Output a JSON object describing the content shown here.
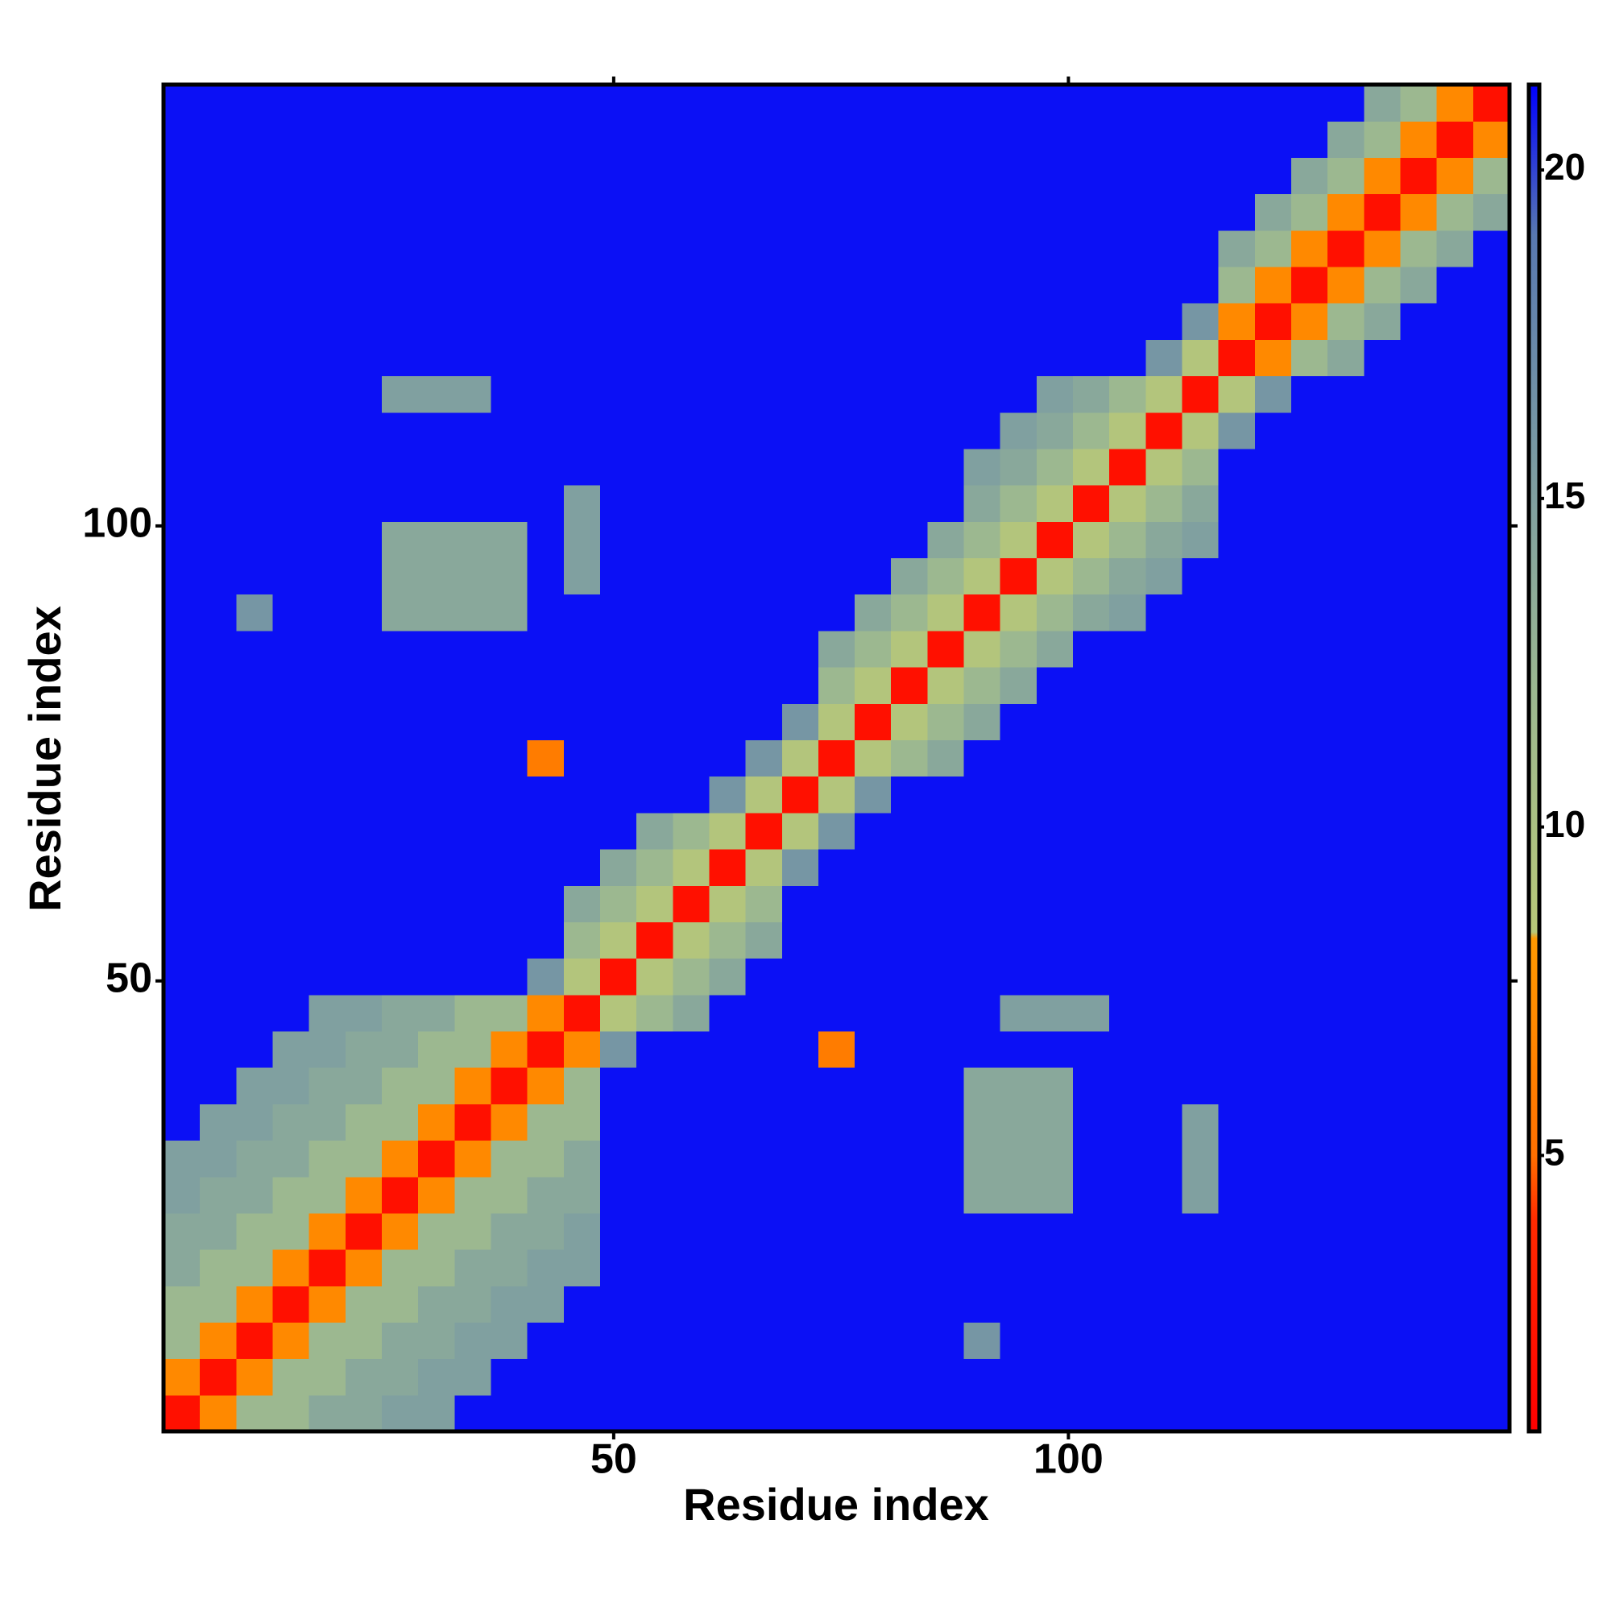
{
  "chart_data": {
    "type": "heatmap",
    "xlabel": "Residue index",
    "ylabel": "Residue index",
    "x": [
      2.5,
      6.5,
      10.5,
      14.5,
      18.5,
      22.5,
      26.5,
      30.5,
      34.5,
      38.5,
      42.5,
      46.5,
      50.5,
      54.5,
      58.5,
      62.5,
      66.5,
      70.5,
      74.5,
      78.5,
      82.5,
      86.5,
      90.5,
      94.5,
      98.5,
      102.5,
      106.5,
      110.5,
      114.5,
      118.5,
      122.5,
      126.5,
      130.5,
      134.5,
      138.5,
      142.5,
      146.5
    ],
    "y": [
      2.5,
      6.5,
      10.5,
      14.5,
      18.5,
      22.5,
      26.5,
      30.5,
      34.5,
      38.5,
      42.5,
      46.5,
      50.5,
      54.5,
      58.5,
      62.5,
      66.5,
      70.5,
      74.5,
      78.5,
      82.5,
      86.5,
      90.5,
      94.5,
      98.5,
      102.5,
      106.5,
      110.5,
      114.5,
      118.5,
      122.5,
      126.5,
      130.5,
      134.5,
      138.5,
      142.5,
      146.5
    ],
    "z": [
      [
        2,
        7,
        12,
        12,
        14,
        14,
        15,
        15,
        21,
        21,
        21,
        21,
        21,
        21,
        21,
        21,
        21,
        21,
        21,
        21,
        21,
        21,
        21,
        21,
        21,
        21,
        21,
        21,
        21,
        21,
        21,
        21,
        21,
        21,
        21,
        21,
        21
      ],
      [
        7,
        2,
        7,
        12,
        12,
        14,
        14,
        15,
        15,
        21,
        21,
        21,
        21,
        21,
        21,
        21,
        21,
        21,
        21,
        21,
        21,
        21,
        21,
        21,
        21,
        21,
        21,
        21,
        21,
        21,
        21,
        21,
        21,
        21,
        21,
        21,
        21
      ],
      [
        12,
        7,
        2,
        7,
        12,
        12,
        14,
        14,
        15,
        15,
        21,
        21,
        21,
        21,
        21,
        21,
        21,
        21,
        21,
        21,
        21,
        21,
        16,
        21,
        21,
        21,
        21,
        21,
        21,
        21,
        21,
        21,
        21,
        21,
        21,
        21,
        21
      ],
      [
        12,
        12,
        7,
        2,
        7,
        12,
        12,
        14,
        14,
        15,
        15,
        21,
        21,
        21,
        21,
        21,
        21,
        21,
        21,
        21,
        21,
        21,
        21,
        21,
        21,
        21,
        21,
        21,
        21,
        21,
        21,
        21,
        21,
        21,
        21,
        21,
        21
      ],
      [
        14,
        12,
        12,
        7,
        2,
        7,
        12,
        12,
        14,
        14,
        15,
        15,
        21,
        21,
        21,
        21,
        21,
        21,
        21,
        21,
        21,
        21,
        21,
        21,
        21,
        21,
        21,
        21,
        21,
        21,
        21,
        21,
        21,
        21,
        21,
        21,
        21
      ],
      [
        14,
        14,
        12,
        12,
        7,
        2,
        7,
        12,
        12,
        14,
        14,
        15,
        21,
        21,
        21,
        21,
        21,
        21,
        21,
        21,
        21,
        21,
        21,
        21,
        21,
        21,
        21,
        21,
        21,
        21,
        21,
        21,
        21,
        21,
        21,
        21,
        21
      ],
      [
        15,
        14,
        14,
        12,
        12,
        7,
        2,
        7,
        12,
        12,
        14,
        14,
        21,
        21,
        21,
        21,
        21,
        21,
        21,
        21,
        21,
        21,
        14,
        14,
        14,
        21,
        21,
        21,
        15,
        21,
        21,
        21,
        21,
        21,
        21,
        21,
        21
      ],
      [
        15,
        15,
        14,
        14,
        12,
        12,
        7,
        2,
        7,
        12,
        12,
        14,
        21,
        21,
        21,
        21,
        21,
        21,
        21,
        21,
        21,
        21,
        14,
        14,
        14,
        21,
        21,
        21,
        15,
        21,
        21,
        21,
        21,
        21,
        21,
        21,
        21
      ],
      [
        21,
        15,
        15,
        14,
        14,
        12,
        12,
        7,
        2,
        7,
        12,
        12,
        21,
        21,
        21,
        21,
        21,
        21,
        21,
        21,
        21,
        21,
        14,
        14,
        14,
        21,
        21,
        21,
        15,
        21,
        21,
        21,
        21,
        21,
        21,
        21,
        21
      ],
      [
        21,
        21,
        15,
        15,
        14,
        14,
        12,
        12,
        7,
        2,
        7,
        12,
        21,
        21,
        21,
        21,
        21,
        21,
        21,
        21,
        21,
        21,
        14,
        14,
        14,
        21,
        21,
        21,
        21,
        21,
        21,
        21,
        21,
        21,
        21,
        21,
        21
      ],
      [
        21,
        21,
        21,
        15,
        15,
        14,
        14,
        12,
        12,
        7,
        2,
        7,
        16,
        21,
        21,
        21,
        21,
        21,
        6,
        21,
        21,
        21,
        21,
        21,
        21,
        21,
        21,
        21,
        21,
        21,
        21,
        21,
        21,
        21,
        21,
        21,
        21
      ],
      [
        21,
        21,
        21,
        21,
        15,
        15,
        14,
        14,
        12,
        12,
        7,
        2,
        9,
        12,
        14,
        21,
        21,
        21,
        21,
        21,
        21,
        21,
        21,
        15,
        15,
        15,
        21,
        21,
        21,
        21,
        21,
        21,
        21,
        21,
        21,
        21,
        21
      ],
      [
        21,
        21,
        21,
        21,
        21,
        21,
        21,
        21,
        21,
        21,
        16,
        9,
        2,
        9,
        12,
        14,
        21,
        21,
        21,
        21,
        21,
        21,
        21,
        21,
        21,
        21,
        21,
        21,
        21,
        21,
        21,
        21,
        21,
        21,
        21,
        21,
        21
      ],
      [
        21,
        21,
        21,
        21,
        21,
        21,
        21,
        21,
        21,
        21,
        21,
        12,
        9,
        2,
        9,
        12,
        14,
        21,
        21,
        21,
        21,
        21,
        21,
        21,
        21,
        21,
        21,
        21,
        21,
        21,
        21,
        21,
        21,
        21,
        21,
        21,
        21
      ],
      [
        21,
        21,
        21,
        21,
        21,
        21,
        21,
        21,
        21,
        21,
        21,
        14,
        12,
        9,
        2,
        9,
        12,
        21,
        21,
        21,
        21,
        21,
        21,
        21,
        21,
        21,
        21,
        21,
        21,
        21,
        21,
        21,
        21,
        21,
        21,
        21,
        21
      ],
      [
        21,
        21,
        21,
        21,
        21,
        21,
        21,
        21,
        21,
        21,
        21,
        21,
        14,
        12,
        9,
        2,
        9,
        16,
        21,
        21,
        21,
        21,
        21,
        21,
        21,
        21,
        21,
        21,
        21,
        21,
        21,
        21,
        21,
        21,
        21,
        21,
        21
      ],
      [
        21,
        21,
        21,
        21,
        21,
        21,
        21,
        21,
        21,
        21,
        21,
        21,
        21,
        14,
        12,
        9,
        2,
        9,
        16,
        21,
        21,
        21,
        21,
        21,
        21,
        21,
        21,
        21,
        21,
        21,
        21,
        21,
        21,
        21,
        21,
        21,
        21
      ],
      [
        21,
        21,
        21,
        21,
        21,
        21,
        21,
        21,
        21,
        21,
        21,
        21,
        21,
        21,
        21,
        16,
        9,
        2,
        9,
        16,
        21,
        21,
        21,
        21,
        21,
        21,
        21,
        21,
        21,
        21,
        21,
        21,
        21,
        21,
        21,
        21,
        21
      ],
      [
        21,
        21,
        21,
        21,
        21,
        21,
        21,
        21,
        21,
        21,
        6,
        21,
        21,
        21,
        21,
        21,
        16,
        9,
        2,
        9,
        12,
        14,
        21,
        21,
        21,
        21,
        21,
        21,
        21,
        21,
        21,
        21,
        21,
        21,
        21,
        21,
        21
      ],
      [
        21,
        21,
        21,
        21,
        21,
        21,
        21,
        21,
        21,
        21,
        21,
        21,
        21,
        21,
        21,
        21,
        21,
        16,
        9,
        2,
        9,
        12,
        14,
        21,
        21,
        21,
        21,
        21,
        21,
        21,
        21,
        21,
        21,
        21,
        21,
        21,
        21
      ],
      [
        21,
        21,
        21,
        21,
        21,
        21,
        21,
        21,
        21,
        21,
        21,
        21,
        21,
        21,
        21,
        21,
        21,
        21,
        12,
        9,
        2,
        9,
        12,
        14,
        21,
        21,
        21,
        21,
        21,
        21,
        21,
        21,
        21,
        21,
        21,
        21,
        21
      ],
      [
        21,
        21,
        21,
        21,
        21,
        21,
        21,
        21,
        21,
        21,
        21,
        21,
        21,
        21,
        21,
        21,
        21,
        21,
        14,
        12,
        9,
        2,
        9,
        12,
        14,
        21,
        21,
        21,
        21,
        21,
        21,
        21,
        21,
        21,
        21,
        21,
        21
      ],
      [
        21,
        21,
        16,
        21,
        21,
        21,
        14,
        14,
        14,
        14,
        21,
        21,
        21,
        21,
        21,
        21,
        21,
        21,
        21,
        14,
        12,
        9,
        2,
        9,
        12,
        14,
        15,
        21,
        21,
        21,
        21,
        21,
        21,
        21,
        21,
        21,
        21
      ],
      [
        21,
        21,
        21,
        21,
        21,
        21,
        14,
        14,
        14,
        14,
        21,
        15,
        21,
        21,
        21,
        21,
        21,
        21,
        21,
        21,
        14,
        12,
        9,
        2,
        9,
        12,
        14,
        15,
        21,
        21,
        21,
        21,
        21,
        21,
        21,
        21,
        21
      ],
      [
        21,
        21,
        21,
        21,
        21,
        21,
        14,
        14,
        14,
        14,
        21,
        15,
        21,
        21,
        21,
        21,
        21,
        21,
        21,
        21,
        21,
        14,
        12,
        9,
        2,
        9,
        12,
        14,
        15,
        21,
        21,
        21,
        21,
        21,
        21,
        21,
        21
      ],
      [
        21,
        21,
        21,
        21,
        21,
        21,
        21,
        21,
        21,
        21,
        21,
        15,
        21,
        21,
        21,
        21,
        21,
        21,
        21,
        21,
        21,
        21,
        14,
        12,
        9,
        2,
        9,
        12,
        14,
        21,
        21,
        21,
        21,
        21,
        21,
        21,
        21
      ],
      [
        21,
        21,
        21,
        21,
        21,
        21,
        21,
        21,
        21,
        21,
        21,
        21,
        21,
        21,
        21,
        21,
        21,
        21,
        21,
        21,
        21,
        21,
        15,
        14,
        12,
        9,
        2,
        9,
        12,
        21,
        21,
        21,
        21,
        21,
        21,
        21,
        21
      ],
      [
        21,
        21,
        21,
        21,
        21,
        21,
        21,
        21,
        21,
        21,
        21,
        21,
        21,
        21,
        21,
        21,
        21,
        21,
        21,
        21,
        21,
        21,
        21,
        15,
        14,
        12,
        9,
        2,
        9,
        16,
        21,
        21,
        21,
        21,
        21,
        21,
        21
      ],
      [
        21,
        21,
        21,
        21,
        21,
        21,
        15,
        15,
        15,
        21,
        21,
        21,
        21,
        21,
        21,
        21,
        21,
        21,
        21,
        21,
        21,
        21,
        21,
        21,
        15,
        14,
        12,
        9,
        2,
        9,
        16,
        21,
        21,
        21,
        21,
        21,
        21
      ],
      [
        21,
        21,
        21,
        21,
        21,
        21,
        21,
        21,
        21,
        21,
        21,
        21,
        21,
        21,
        21,
        21,
        21,
        21,
        21,
        21,
        21,
        21,
        21,
        21,
        21,
        21,
        21,
        16,
        9,
        2,
        7,
        12,
        14,
        21,
        21,
        21,
        21
      ],
      [
        21,
        21,
        21,
        21,
        21,
        21,
        21,
        21,
        21,
        21,
        21,
        21,
        21,
        21,
        21,
        21,
        21,
        21,
        21,
        21,
        21,
        21,
        21,
        21,
        21,
        21,
        21,
        21,
        16,
        7,
        2,
        7,
        12,
        14,
        21,
        21,
        21
      ],
      [
        21,
        21,
        21,
        21,
        21,
        21,
        21,
        21,
        21,
        21,
        21,
        21,
        21,
        21,
        21,
        21,
        21,
        21,
        21,
        21,
        21,
        21,
        21,
        21,
        21,
        21,
        21,
        21,
        21,
        12,
        7,
        2,
        7,
        12,
        14,
        21,
        21
      ],
      [
        21,
        21,
        21,
        21,
        21,
        21,
        21,
        21,
        21,
        21,
        21,
        21,
        21,
        21,
        21,
        21,
        21,
        21,
        21,
        21,
        21,
        21,
        21,
        21,
        21,
        21,
        21,
        21,
        21,
        14,
        12,
        7,
        2,
        7,
        12,
        14,
        21
      ],
      [
        21,
        21,
        21,
        21,
        21,
        21,
        21,
        21,
        21,
        21,
        21,
        21,
        21,
        21,
        21,
        21,
        21,
        21,
        21,
        21,
        21,
        21,
        21,
        21,
        21,
        21,
        21,
        21,
        21,
        21,
        14,
        12,
        7,
        2,
        7,
        12,
        14
      ],
      [
        21,
        21,
        21,
        21,
        21,
        21,
        21,
        21,
        21,
        21,
        21,
        21,
        21,
        21,
        21,
        21,
        21,
        21,
        21,
        21,
        21,
        21,
        21,
        21,
        21,
        21,
        21,
        21,
        21,
        21,
        21,
        14,
        12,
        7,
        2,
        7,
        12
      ],
      [
        21,
        21,
        21,
        21,
        21,
        21,
        21,
        21,
        21,
        21,
        21,
        21,
        21,
        21,
        21,
        21,
        21,
        21,
        21,
        21,
        21,
        21,
        21,
        21,
        21,
        21,
        21,
        21,
        21,
        21,
        21,
        21,
        14,
        12,
        7,
        2,
        7
      ],
      [
        21,
        21,
        21,
        21,
        21,
        21,
        21,
        21,
        21,
        21,
        21,
        21,
        21,
        21,
        21,
        21,
        21,
        21,
        21,
        21,
        21,
        21,
        21,
        21,
        21,
        21,
        21,
        21,
        21,
        21,
        21,
        21,
        21,
        14,
        12,
        7,
        2
      ]
    ],
    "xlim": [
      0.5,
      148.5
    ],
    "ylim": [
      0.5,
      148.5
    ],
    "xticks": [
      50,
      100
    ],
    "yticks": [
      50,
      100
    ],
    "clim": [
      0.8,
      21.3
    ],
    "cticks": [
      5,
      10,
      15,
      20
    ],
    "colorscale": [
      [
        0.8,
        "#ff0000"
      ],
      [
        4,
        "#ff2a00"
      ],
      [
        5,
        "#ff7000"
      ],
      [
        8.3,
        "#ff9900"
      ],
      [
        8.4,
        "#b8c878"
      ],
      [
        12,
        "#9cb890"
      ],
      [
        15,
        "#80a0a0"
      ],
      [
        19,
        "#5878b0"
      ],
      [
        21.3,
        "#0000ff"
      ]
    ]
  }
}
